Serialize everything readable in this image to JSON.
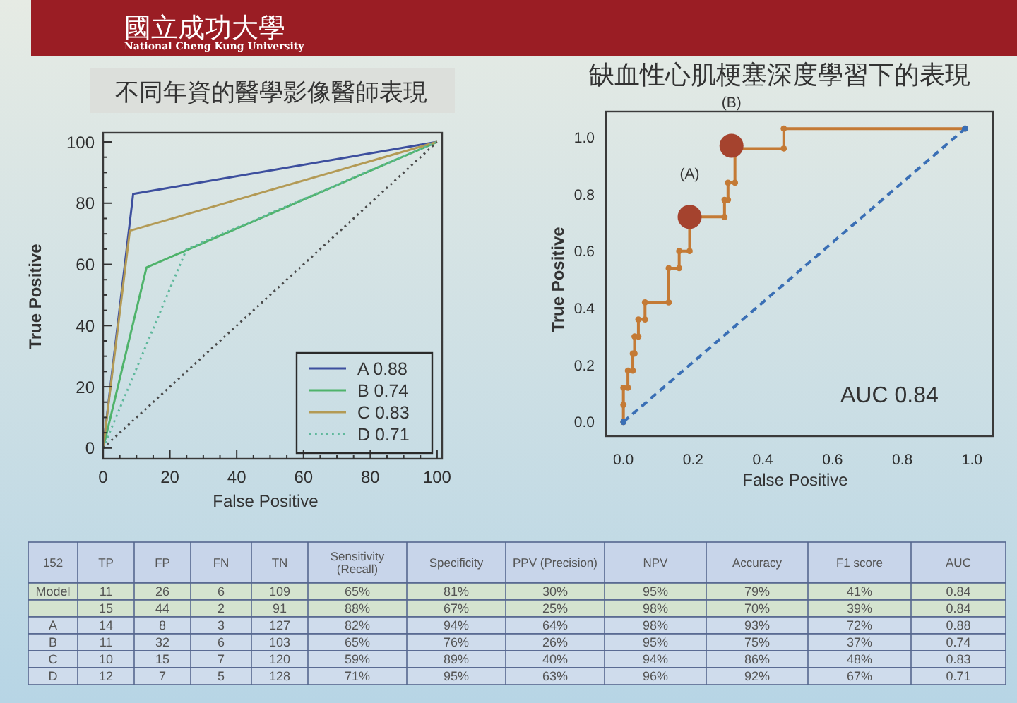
{
  "chart_data": [
    {
      "type": "other",
      "annotations": [
        "國立成功大學",
        "National Cheng Kung University"
      ]
    },
    {
      "type": "line",
      "title": "不同年資的醫學影像醫師表現",
      "xlabel": "False Positive",
      "ylabel": "True Positive",
      "xlim": [
        0,
        101.5
      ],
      "ylim": [
        -3.5,
        103
      ],
      "xticks": [
        0,
        {
          "value": 5,
          "label": null
        },
        {
          "value": 10,
          "label": null
        },
        {
          "value": 15,
          "label": null
        },
        20,
        {
          "value": 25,
          "label": null
        },
        {
          "value": 30,
          "label": null
        },
        {
          "value": 35,
          "label": null
        },
        40,
        {
          "value": 45,
          "label": null
        },
        {
          "value": 50,
          "label": null
        },
        {
          "value": 55,
          "label": null
        },
        60,
        {
          "value": 65,
          "label": null
        },
        {
          "value": 70,
          "label": null
        },
        {
          "value": 75,
          "label": null
        },
        80,
        {
          "value": 85,
          "label": null
        },
        {
          "value": 90,
          "label": null
        },
        {
          "value": 95,
          "label": null
        },
        100
      ],
      "yticks": [
        0,
        {
          "value": 5,
          "label": null
        },
        {
          "value": 10,
          "label": null
        },
        {
          "value": 15,
          "label": null
        },
        20,
        {
          "value": 25,
          "label": null
        },
        {
          "value": 30,
          "label": null
        },
        {
          "value": 35,
          "label": null
        },
        40,
        {
          "value": 45,
          "label": null
        },
        {
          "value": 50,
          "label": null
        },
        {
          "value": 55,
          "label": null
        },
        60,
        {
          "value": 65,
          "label": null
        },
        {
          "value": 70,
          "label": null
        },
        {
          "value": 75,
          "label": null
        },
        80,
        {
          "value": 85,
          "label": null
        },
        {
          "value": 90,
          "label": null
        },
        {
          "value": 95,
          "label": null
        },
        100
      ],
      "series": [
        {
          "name": "A 0.88",
          "color": "#3d4f9e",
          "x": [
            0,
            9,
            100
          ],
          "values": [
            0,
            83,
            100
          ]
        },
        {
          "name": "B 0.74",
          "color": "#4fb36b",
          "x": [
            0,
            13,
            100
          ],
          "values": [
            0,
            59,
            100
          ]
        },
        {
          "name": "C 0.83",
          "color": "#b39a55",
          "x": [
            0,
            8,
            100
          ],
          "values": [
            0,
            71,
            100
          ]
        },
        {
          "name": "D 0.71",
          "color": "#5fb89c",
          "line_style": "dotted",
          "x": [
            0,
            25,
            100
          ],
          "values": [
            0,
            65,
            100
          ]
        },
        {
          "color": "#4a4a4a",
          "line_style": "dotted",
          "x": [
            0,
            100
          ],
          "values": [
            0,
            100
          ]
        }
      ],
      "legend": "bottom right"
    },
    {
      "type": "line",
      "title": "缺血性心肌梗塞深度學習下的表現",
      "xlabel": "False Positive",
      "ylabel": "True Positive",
      "xlim": [
        -0.05,
        1.06
      ],
      "ylim": [
        -0.05,
        1.09
      ],
      "xticks": [
        {
          "value": 0,
          "label": "0.0"
        },
        0.2,
        0.4,
        0.6,
        0.8,
        {
          "value": 1,
          "label": "1.0"
        }
      ],
      "yticks": [
        {
          "value": 0,
          "label": "0.0"
        },
        0.2,
        0.4,
        0.6,
        0.8,
        {
          "value": 1,
          "label": "1.0"
        }
      ],
      "marker": "circle",
      "series": [
        {
          "color": "#c47a35",
          "x": [
            0,
            0,
            0,
            0.013,
            0.013,
            0.027,
            0.027,
            0.032,
            0.032,
            0.043,
            0.043,
            0.062,
            0.062,
            0.13,
            0.13,
            0.16,
            0.16,
            0.19,
            0.19,
            0.29,
            0.29,
            0.3,
            0.3,
            0.32,
            0.32,
            0.46,
            0.46,
            0.98
          ],
          "values": [
            0,
            0.06,
            0.12,
            0.12,
            0.18,
            0.18,
            0.24,
            0.24,
            0.3,
            0.3,
            0.36,
            0.36,
            0.42,
            0.42,
            0.54,
            0.54,
            0.6,
            0.6,
            0.72,
            0.72,
            0.78,
            0.78,
            0.84,
            0.84,
            0.96,
            0.96,
            1.03,
            1.03
          ]
        },
        {
          "type": "scatter",
          "color": "#a5432e",
          "x": [
            0.19,
            0.31
          ],
          "values": [
            0.72,
            0.97
          ]
        },
        {
          "color": "#3a6fb5",
          "line_style": "dashed",
          "x": [
            0,
            0.98
          ],
          "values": [
            0,
            1.03
          ]
        }
      ],
      "annotations": [
        {
          "text": "(A)",
          "x": 0.19,
          "y": 0.72
        },
        {
          "text": "(B)",
          "x": 0.31,
          "y": 0.97
        },
        "AUC 0.84"
      ]
    },
    {
      "type": "other",
      "categories": [
        "152",
        "TP",
        "FP",
        "FN",
        "TN",
        "Sensitivity\n(Recall)",
        "Specificity",
        "PPV (Precision)",
        "NPV",
        "Accuracy",
        "F1 score",
        "AUC"
      ],
      "cell_labels": [
        [
          "Model",
          "11",
          "26",
          "6",
          "109",
          "65%",
          "81%",
          "30%",
          "95%",
          "79%",
          "41%",
          "0.84"
        ],
        [
          null,
          "15",
          "44",
          "2",
          "91",
          "88%",
          "67%",
          "25%",
          "98%",
          "70%",
          "39%",
          "0.84"
        ],
        [
          "A",
          "14",
          "8",
          "3",
          "127",
          "82%",
          "94%",
          "64%",
          "98%",
          "93%",
          "72%",
          "0.88"
        ],
        [
          "B",
          "11",
          "32",
          "6",
          "103",
          "65%",
          "76%",
          "26%",
          "95%",
          "75%",
          "37%",
          "0.74"
        ],
        [
          "C",
          "10",
          "15",
          "7",
          "120",
          "59%",
          "89%",
          "40%",
          "94%",
          "86%",
          "48%",
          "0.83"
        ],
        [
          "D",
          "12",
          "7",
          "5",
          "128",
          "71%",
          "95%",
          "63%",
          "96%",
          "92%",
          "67%",
          "0.71"
        ]
      ]
    }
  ]
}
